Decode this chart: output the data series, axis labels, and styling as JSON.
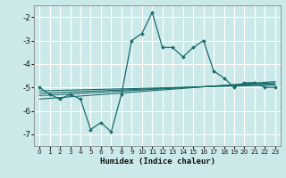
{
  "xlabel": "Humidex (Indice chaleur)",
  "bg_color": "#cce9e9",
  "grid_color": "#aadddd",
  "line_color": "#1a6b6b",
  "xlim": [
    -0.5,
    23.5
  ],
  "ylim": [
    -7.5,
    -1.5
  ],
  "yticks": [
    -7,
    -6,
    -5,
    -4,
    -3,
    -2
  ],
  "xticks": [
    0,
    1,
    2,
    3,
    4,
    5,
    6,
    7,
    8,
    9,
    10,
    11,
    12,
    13,
    14,
    15,
    16,
    17,
    18,
    19,
    20,
    21,
    22,
    23
  ],
  "main_x": [
    0,
    1,
    2,
    3,
    4,
    5,
    6,
    7,
    8,
    9,
    10,
    11,
    12,
    13,
    14,
    15,
    16,
    17,
    18,
    19,
    20,
    21,
    22,
    23
  ],
  "main_y": [
    -5.0,
    -5.3,
    -5.5,
    -5.3,
    -5.5,
    -6.8,
    -6.5,
    -6.9,
    -5.3,
    -3.0,
    -2.7,
    -1.8,
    -3.3,
    -3.3,
    -3.7,
    -3.3,
    -3.0,
    -4.3,
    -4.6,
    -5.0,
    -4.8,
    -4.8,
    -5.0,
    -5.0
  ],
  "line2_x": [
    0,
    23
  ],
  "line2_y": [
    -5.15,
    -4.9
  ],
  "line3_x": [
    0,
    23
  ],
  "line3_y": [
    -5.25,
    -4.85
  ],
  "line4_x": [
    0,
    23
  ],
  "line4_y": [
    -5.35,
    -4.8
  ],
  "line5_x": [
    0,
    23
  ],
  "line5_y": [
    -5.5,
    -4.75
  ]
}
